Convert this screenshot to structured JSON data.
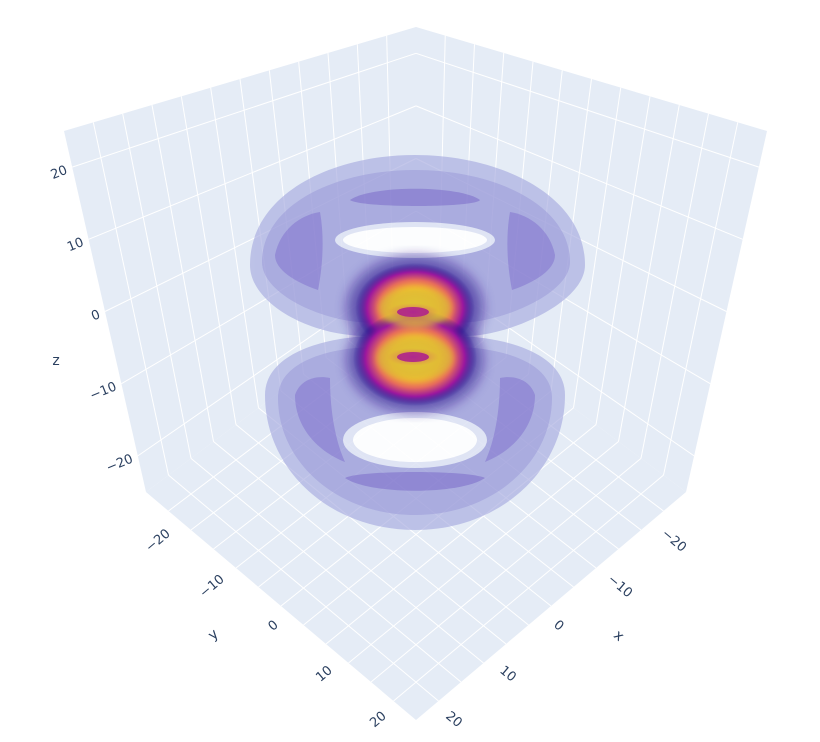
{
  "chart_data": {
    "type": "isosurface-volume",
    "title": "",
    "colorscale": "plasma",
    "colors": {
      "pane_fill": "#e5ecf6",
      "grid_line": "#ffffff",
      "tick_text": "#2a3f5f",
      "outer_shell": "#8f8fd6",
      "inner_shell": "#7b6fcc",
      "core_low": "#0d0887",
      "core_mid": "#cc4778",
      "core_high": "#f0f921"
    },
    "axes": {
      "x": {
        "title": "x",
        "range": [
          -25,
          25
        ],
        "ticks": [
          -20,
          -10,
          0,
          10,
          20
        ],
        "tick_labels": [
          "−20",
          "−10",
          "0",
          "10",
          "20"
        ]
      },
      "y": {
        "title": "y",
        "range": [
          -25,
          25
        ],
        "ticks": [
          -20,
          -10,
          0,
          10,
          20
        ],
        "tick_labels": [
          "−20",
          "−10",
          "0",
          "10",
          "20"
        ]
      },
      "z": {
        "title": "z",
        "range": [
          -25,
          25
        ],
        "ticks": [
          -20,
          -10,
          0,
          10,
          20
        ],
        "tick_labels": [
          "−20",
          "−10",
          "0",
          "10",
          "20"
        ]
      }
    },
    "lobes": [
      {
        "name": "upper",
        "center_z": 8
      },
      {
        "name": "lower",
        "center_z": -8
      }
    ],
    "shells": [
      {
        "name": "outer-lobe-top",
        "center_z": 13,
        "radius": 16
      },
      {
        "name": "outer-lobe-bottom",
        "center_z": -13,
        "radius": 16
      }
    ],
    "grid": true,
    "showlegend": false,
    "showscale": false
  }
}
